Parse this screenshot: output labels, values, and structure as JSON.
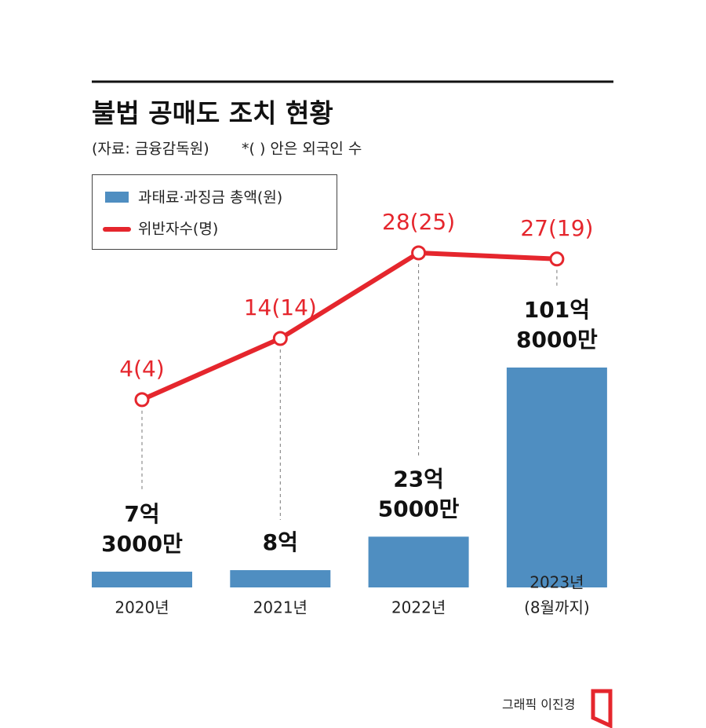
{
  "chart_data": {
    "type": "bar-line",
    "title": "불법 공매도 조치 현황",
    "source": "(자료: 금융감독원)",
    "note": "*( ) 안은 외국인 수",
    "credit": "그래픽 이진경",
    "categories": [
      "2020년",
      "2021년",
      "2022년",
      [
        "2023년",
        "(8월까지)"
      ]
    ],
    "series": [
      {
        "name": "과태료·과징금 총액(원)",
        "type": "bar",
        "color": "#4f8ec1",
        "values": [
          730000000,
          800000000,
          2350000000,
          10180000000
        ],
        "value_labels": [
          [
            "7억",
            "3000만"
          ],
          [
            "8억"
          ],
          [
            "23억",
            "5000만"
          ],
          [
            "101억",
            "8000만"
          ]
        ]
      },
      {
        "name": "위반자수(명)",
        "type": "line",
        "color": "#e5262d",
        "values": [
          4,
          14,
          28,
          27
        ],
        "value_labels": [
          "4(4)",
          "14(14)",
          "28(25)",
          "27(19)"
        ]
      }
    ]
  }
}
